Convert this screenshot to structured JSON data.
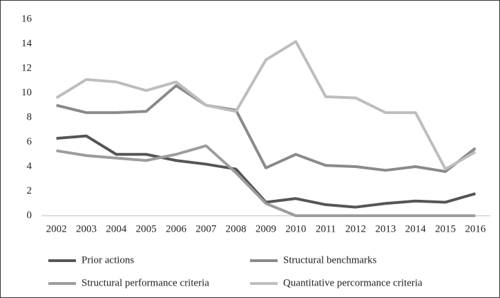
{
  "chart_data": {
    "type": "line",
    "categories": [
      "2002",
      "2003",
      "2004",
      "2005",
      "2006",
      "2007",
      "2008",
      "2009",
      "2010",
      "2011",
      "2012",
      "2013",
      "2014",
      "2015",
      "2016"
    ],
    "series": [
      {
        "name": "Prior actions",
        "color": "#555555",
        "values": [
          6.3,
          6.5,
          5.0,
          5.0,
          4.5,
          4.2,
          3.8,
          1.1,
          1.4,
          0.9,
          0.7,
          1.0,
          1.2,
          1.1,
          1.8
        ]
      },
      {
        "name": "Structural benchmarks",
        "color": "#8a8a8a",
        "values": [
          9.0,
          8.4,
          8.4,
          8.5,
          10.6,
          9.0,
          8.6,
          3.9,
          5.0,
          4.1,
          4.0,
          3.7,
          4.0,
          3.6,
          5.5
        ]
      },
      {
        "name": "Structural performance criteria",
        "color": "#9c9c9c",
        "values": [
          5.3,
          4.9,
          4.7,
          4.5,
          5.0,
          5.7,
          3.5,
          1.0,
          0,
          0,
          0,
          0,
          0,
          0,
          0
        ]
      },
      {
        "name": "Quantitative percormance criteria",
        "color": "#bdbdbd",
        "values": [
          9.6,
          11.1,
          10.9,
          10.2,
          10.9,
          9.0,
          8.5,
          12.7,
          14.2,
          9.7,
          9.6,
          8.4,
          8.4,
          3.8,
          5.2
        ]
      }
    ],
    "ylim": [
      0,
      16
    ],
    "yticks": [
      0,
      2,
      4,
      6,
      8,
      10,
      12,
      14,
      16
    ],
    "grid": false
  }
}
